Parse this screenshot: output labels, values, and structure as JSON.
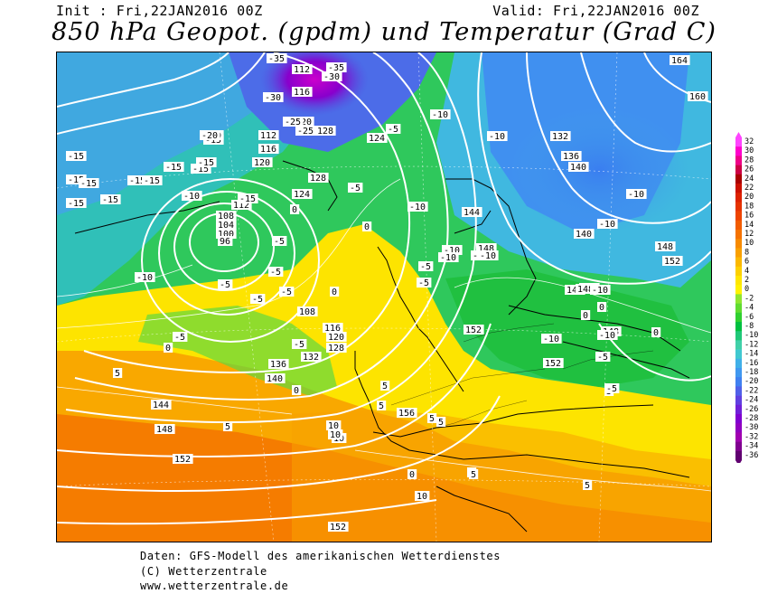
{
  "header": {
    "init": "Init : Fri,22JAN2016 00Z",
    "valid": "Valid: Fri,22JAN2016 00Z",
    "title": "850 hPa Geopot. (gpdm) und Temperatur (Grad C)"
  },
  "footer": {
    "line1": "Daten: GFS-Modell des amerikanischen Wetterdienstes",
    "line2": "(C) Wetterzentrale",
    "line3": "www.wetterzentrale.de"
  },
  "legend": {
    "values": [
      "32",
      "30",
      "28",
      "26",
      "24",
      "22",
      "20",
      "18",
      "16",
      "14",
      "12",
      "10",
      "8",
      "6",
      "4",
      "2",
      "0",
      "-2",
      "-4",
      "-6",
      "-8",
      "-10",
      "-12",
      "-14",
      "-16",
      "-18",
      "-20",
      "-22",
      "-24",
      "-26",
      "-28",
      "-30",
      "-32",
      "-34",
      "-36"
    ],
    "colors": [
      "#ff44ff",
      "#ff00cc",
      "#ee0088",
      "#cc0044",
      "#aa0000",
      "#cc1100",
      "#dd2200",
      "#e63300",
      "#ee4400",
      "#f25c00",
      "#f57200",
      "#f78a00",
      "#f9a000",
      "#fbb800",
      "#fdd000",
      "#ffe600",
      "#fff200",
      "#90e630",
      "#60dc30",
      "#30d030",
      "#00c040",
      "#20c878",
      "#40d0a8",
      "#40c8d0",
      "#40b0e8",
      "#4098f0",
      "#4080f0",
      "#5060e8",
      "#6040e0",
      "#7020d8",
      "#8000d0",
      "#9000c0",
      "#a000b0",
      "#800090",
      "#600070"
    ]
  },
  "map": {
    "geopotential_labels": [
      "112",
      "116",
      "120",
      "128",
      "124",
      "132",
      "136",
      "140",
      "164",
      "160",
      "112",
      "116",
      "120",
      "108",
      "104",
      "100",
      "96",
      "112",
      "124",
      "128",
      "144",
      "148",
      "140",
      "148",
      "152",
      "108",
      "116",
      "120",
      "128",
      "132",
      "136",
      "140",
      "144",
      "148",
      "152",
      "156",
      "156",
      "152",
      "144",
      "148",
      "144",
      "152",
      "148",
      "152"
    ],
    "temperature_labels": [
      "-15",
      "-15",
      "-15",
      "-15",
      "-15",
      "-15",
      "-15",
      "-15",
      "-15",
      "-15",
      "-15",
      "-15",
      "-10",
      "-10",
      "-10",
      "-10",
      "-10",
      "-10",
      "-10",
      "-10",
      "-10",
      "-10",
      "-10",
      "-5",
      "-5",
      "-5",
      "-5",
      "-5",
      "-5",
      "-5",
      "0",
      "0",
      "0",
      "5",
      "5",
      "5",
      "5",
      "5",
      "5",
      "5",
      "10",
      "10",
      "10",
      "10",
      "-20",
      "-25",
      "-30",
      "-35",
      "-35",
      "-30",
      "-20",
      "-25",
      "-5",
      "-5",
      "-5",
      "-5",
      "0",
      "0",
      "0",
      "0",
      "0",
      "5",
      "5",
      "-10",
      "-5",
      "-5",
      "0",
      "5",
      "-10",
      "-10"
    ]
  }
}
